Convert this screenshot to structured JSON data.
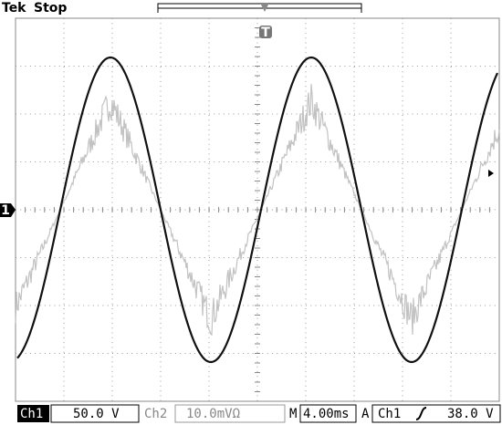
{
  "header": {
    "brand": "Tek",
    "status": "Stop"
  },
  "markers": {
    "channel": "1",
    "trigger": "T"
  },
  "status_bar": {
    "ch1_label": "Ch1",
    "ch1_scale": "50.0 V",
    "ch2_label": "Ch2",
    "ch2_scale": "10.0mVΩ",
    "timebase_label": "M",
    "timebase": "4.00ms",
    "trigger_mode": "A",
    "trigger_source": "Ch1",
    "trigger_level": "38.0 V"
  }
}
